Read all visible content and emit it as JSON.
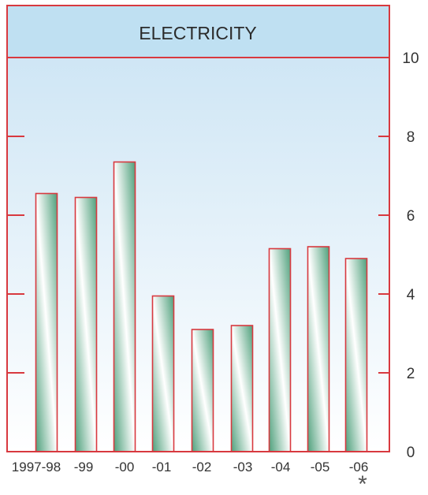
{
  "chart_data": {
    "type": "bar",
    "title": "ELECTRICITY",
    "categories": [
      "1997-98",
      "-99",
      "-00",
      "-01",
      "-02",
      "-03",
      "-04",
      "-05",
      "-06"
    ],
    "values": [
      6.55,
      6.45,
      7.35,
      3.95,
      3.1,
      3.2,
      5.15,
      5.2,
      4.9
    ],
    "ylim": [
      0,
      10
    ],
    "yticks": [
      "0",
      "2",
      "4",
      "6",
      "8",
      "10"
    ],
    "y_axis_side": "right",
    "footnote_marker": "*",
    "grid": false,
    "colors": {
      "frame": "#d8393f",
      "title_band": "#bfe0f2",
      "plot_top": "#cfe6f5",
      "plot_bottom": "#ffffff",
      "bar_edge": "#4fa07c",
      "bar_center": "#ffffff",
      "title_text": "#2b2b2b",
      "tick_text": "#333333"
    }
  }
}
